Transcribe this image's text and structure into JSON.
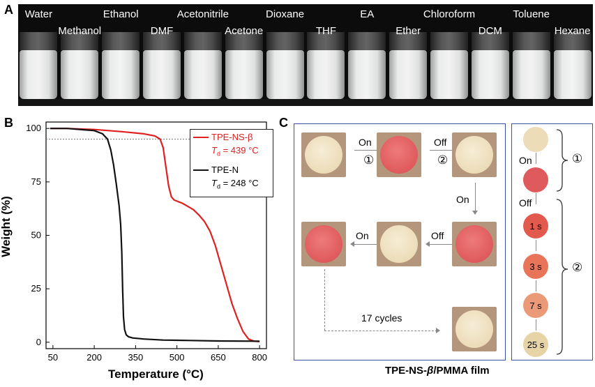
{
  "panels": {
    "a": "A",
    "b": "B",
    "c": "C"
  },
  "solvents": [
    "Water",
    "Methanol",
    "Ethanol",
    "DMF",
    "Acetonitrile",
    "Acetone",
    "Dioxane",
    "THF",
    "EA",
    "Ether",
    "Chloroform",
    "DCM",
    "Toluene",
    "Hexane"
  ],
  "chart_data": {
    "type": "line",
    "xlabel": "Temperature (°C)",
    "ylabel": "Weight (%)",
    "xlim": [
      25,
      825
    ],
    "ylim": [
      -3,
      103
    ],
    "xticks": [
      50,
      200,
      350,
      500,
      650,
      800
    ],
    "yticks": [
      0,
      25,
      50,
      75,
      100
    ],
    "reference_line_y": 95,
    "series": [
      {
        "name": "TPE-NS-β",
        "color": "#e02020",
        "td_label": "T",
        "td_sub": "d",
        "td_value": " = 439 °C",
        "x": [
          40,
          100,
          200,
          300,
          380,
          420,
          439,
          450,
          460,
          470,
          480,
          490,
          500,
          520,
          540,
          560,
          580,
          600,
          620,
          640,
          660,
          680,
          700,
          720,
          740,
          760,
          780,
          800
        ],
        "y": [
          100,
          100,
          99.5,
          98.5,
          97.5,
          96.5,
          95,
          91,
          82,
          73,
          68,
          66.5,
          66,
          65,
          63.5,
          62,
          59.5,
          56.5,
          52,
          45,
          36,
          27,
          18,
          11,
          5,
          1.5,
          0.5,
          0.3
        ]
      },
      {
        "name": "TPE-N",
        "color": "#111111",
        "td_label": "T",
        "td_sub": "d",
        "td_value": " = 248 °C",
        "x": [
          40,
          100,
          200,
          230,
          248,
          260,
          270,
          280,
          290,
          296,
          300,
          303,
          306,
          310,
          316,
          325,
          340,
          380,
          450,
          550,
          650,
          800
        ],
        "y": [
          100,
          100,
          99,
          97.5,
          95,
          90,
          83,
          74,
          64,
          55,
          42,
          25,
          12,
          6,
          3.5,
          2.5,
          2,
          1.5,
          1,
          0.8,
          0.6,
          0.5
        ]
      }
    ]
  },
  "cycle": {
    "on": "On",
    "off": "Off",
    "step1": "①",
    "step2": "②",
    "cycles": "17 cycles",
    "times": [
      "1 s",
      "3 s",
      "7 s",
      "25 s"
    ],
    "caption_main": "TPE-NS-",
    "caption_beta": "β",
    "caption_tail": "/PMMA film",
    "color_yellow": "#ecdcb8",
    "color_red": "#df5a5c"
  }
}
